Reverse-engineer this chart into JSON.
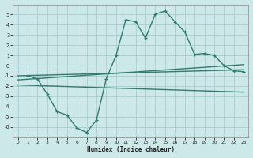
{
  "background_color": "#cce8e8",
  "grid_color": "#aacccc",
  "line_color": "#2e7d6e",
  "xlabel": "Humidex (Indice chaleur)",
  "ylim": [
    -7,
    6
  ],
  "xlim": [
    -0.5,
    23.5
  ],
  "yticks": [
    -6,
    -5,
    -4,
    -3,
    -2,
    -1,
    0,
    1,
    2,
    3,
    4,
    5
  ],
  "xticks": [
    0,
    1,
    2,
    3,
    4,
    5,
    6,
    7,
    8,
    9,
    10,
    11,
    12,
    13,
    14,
    15,
    16,
    17,
    18,
    19,
    20,
    21,
    22,
    23
  ],
  "main_x": [
    1,
    2,
    3,
    4,
    5,
    6,
    7,
    8,
    9,
    10,
    11,
    12,
    13,
    14,
    15,
    16,
    17,
    18,
    19,
    20,
    21,
    22,
    23
  ],
  "main_y": [
    -1.0,
    -1.3,
    -2.8,
    -4.5,
    -4.85,
    -6.1,
    -6.55,
    -5.35,
    -1.3,
    1.0,
    4.5,
    4.3,
    2.7,
    5.05,
    5.35,
    4.3,
    3.3,
    1.1,
    1.2,
    1.0,
    0.0,
    -0.5,
    -0.6
  ],
  "line1_x": [
    0,
    23
  ],
  "line1_y": [
    -1.0,
    -0.4
  ],
  "line2_x": [
    0,
    23
  ],
  "line2_y": [
    -1.4,
    0.1
  ],
  "line3_x": [
    0,
    23
  ],
  "line3_y": [
    -1.9,
    -2.6
  ]
}
